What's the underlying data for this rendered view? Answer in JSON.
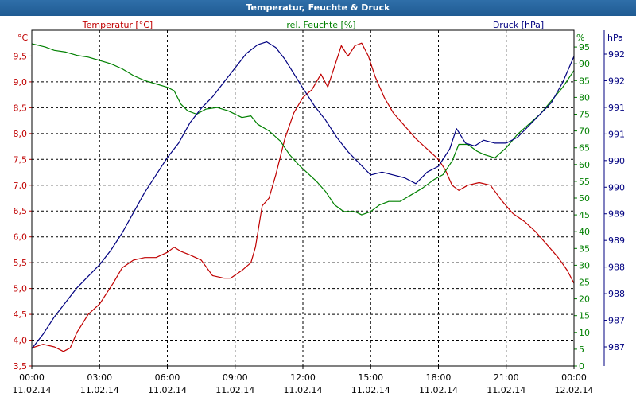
{
  "window": {
    "title": "Temperatur, Feuchte & Druck"
  },
  "colors": {
    "temperature": "#c00000",
    "humidity": "#008000",
    "pressure": "#000080",
    "frame": "#000000",
    "grid": "#000000",
    "titlebar": "#2866a0"
  },
  "chart_data": {
    "type": "line",
    "title": "Temperatur, Feuchte & Druck",
    "grid": true,
    "x": {
      "ticks": [
        [
          "00:00",
          "11.02.14"
        ],
        [
          "03:00",
          "11.02.14"
        ],
        [
          "06:00",
          "11.02.14"
        ],
        [
          "09:00",
          "11.02.14"
        ],
        [
          "12:00",
          "11.02.14"
        ],
        [
          "15:00",
          "11.02.14"
        ],
        [
          "18:00",
          "11.02.14"
        ],
        [
          "21:00",
          "11.02.14"
        ],
        [
          "00:00",
          "12.02.14"
        ]
      ],
      "range_hours": [
        0,
        24
      ]
    },
    "axes": {
      "temperature": {
        "label": "Temperatur [°C]",
        "unit": "°C",
        "range": [
          3.5,
          10.0
        ],
        "tick_labels": [
          "3,5",
          "4,0",
          "4,5",
          "5,0",
          "5,5",
          "6,0",
          "6,5",
          "7,0",
          "7,5",
          "8,0",
          "8,5",
          "9,0",
          "9,5"
        ]
      },
      "humidity": {
        "label": "rel. Feuchte [%]",
        "unit": "%",
        "range": [
          0,
          100
        ],
        "tick_labels": [
          "0",
          "5",
          "10",
          "15",
          "20",
          "25",
          "30",
          "35",
          "40",
          "45",
          "50",
          "55",
          "60",
          "65",
          "70",
          "75",
          "80",
          "85",
          "90",
          "95"
        ]
      },
      "pressure": {
        "label": "Druck [hPa]",
        "unit": "hPa",
        "range": [
          986.6,
          992.4
        ],
        "tick_labels": [
          "987",
          "987",
          "988",
          "988",
          "989",
          "989",
          "990",
          "990",
          "991",
          "991",
          "992",
          "992"
        ]
      }
    },
    "series": [
      {
        "name": "Temperatur [°C]",
        "axis": "temperature",
        "color": "#c00000",
        "points": [
          [
            0,
            3.85
          ],
          [
            0.5,
            3.92
          ],
          [
            1,
            3.87
          ],
          [
            1.4,
            3.78
          ],
          [
            1.7,
            3.85
          ],
          [
            2,
            4.15
          ],
          [
            2.5,
            4.5
          ],
          [
            3,
            4.7
          ],
          [
            3.3,
            4.9
          ],
          [
            3.6,
            5.1
          ],
          [
            4,
            5.4
          ],
          [
            4.5,
            5.55
          ],
          [
            5,
            5.6
          ],
          [
            5.5,
            5.6
          ],
          [
            6,
            5.7
          ],
          [
            6.3,
            5.8
          ],
          [
            6.6,
            5.72
          ],
          [
            7,
            5.65
          ],
          [
            7.5,
            5.55
          ],
          [
            8,
            5.25
          ],
          [
            8.5,
            5.2
          ],
          [
            8.8,
            5.2
          ],
          [
            9.3,
            5.35
          ],
          [
            9.7,
            5.5
          ],
          [
            9.9,
            5.8
          ],
          [
            10.2,
            6.6
          ],
          [
            10.5,
            6.75
          ],
          [
            10.8,
            7.2
          ],
          [
            11.2,
            7.9
          ],
          [
            11.6,
            8.4
          ],
          [
            12,
            8.7
          ],
          [
            12.4,
            8.85
          ],
          [
            12.8,
            9.15
          ],
          [
            13.1,
            8.9
          ],
          [
            13.4,
            9.3
          ],
          [
            13.7,
            9.7
          ],
          [
            14,
            9.5
          ],
          [
            14.3,
            9.7
          ],
          [
            14.6,
            9.75
          ],
          [
            14.9,
            9.5
          ],
          [
            15.2,
            9.1
          ],
          [
            15.6,
            8.7
          ],
          [
            16,
            8.4
          ],
          [
            16.5,
            8.15
          ],
          [
            17,
            7.9
          ],
          [
            17.5,
            7.7
          ],
          [
            18,
            7.5
          ],
          [
            18.3,
            7.3
          ],
          [
            18.6,
            7.0
          ],
          [
            18.9,
            6.9
          ],
          [
            19.3,
            7.0
          ],
          [
            19.8,
            7.05
          ],
          [
            20.3,
            7.0
          ],
          [
            20.8,
            6.7
          ],
          [
            21.3,
            6.45
          ],
          [
            21.8,
            6.3
          ],
          [
            22.3,
            6.1
          ],
          [
            22.8,
            5.85
          ],
          [
            23.3,
            5.6
          ],
          [
            23.7,
            5.35
          ],
          [
            24,
            5.1
          ]
        ]
      },
      {
        "name": "rel. Feuchte [%]",
        "axis": "humidity",
        "color": "#008000",
        "points": [
          [
            0,
            96
          ],
          [
            0.6,
            95
          ],
          [
            1,
            94
          ],
          [
            1.5,
            93.5
          ],
          [
            2,
            92.5
          ],
          [
            2.5,
            92
          ],
          [
            3,
            91
          ],
          [
            3.5,
            90
          ],
          [
            4,
            88.5
          ],
          [
            4.5,
            86.5
          ],
          [
            5,
            85
          ],
          [
            5.5,
            84
          ],
          [
            6,
            83
          ],
          [
            6.3,
            82
          ],
          [
            6.6,
            78
          ],
          [
            6.9,
            76
          ],
          [
            7.3,
            75
          ],
          [
            7.7,
            76.5
          ],
          [
            8.2,
            77
          ],
          [
            8.7,
            76
          ],
          [
            9.3,
            74
          ],
          [
            9.7,
            74.5
          ],
          [
            10,
            72
          ],
          [
            10.5,
            70
          ],
          [
            11,
            67
          ],
          [
            11.4,
            63
          ],
          [
            11.8,
            60
          ],
          [
            12.2,
            57.5
          ],
          [
            12.6,
            55
          ],
          [
            13,
            52
          ],
          [
            13.4,
            48
          ],
          [
            13.8,
            46
          ],
          [
            14.3,
            46
          ],
          [
            14.6,
            45
          ],
          [
            15,
            46
          ],
          [
            15.4,
            48
          ],
          [
            15.8,
            49
          ],
          [
            16.3,
            49
          ],
          [
            16.8,
            51
          ],
          [
            17.3,
            53
          ],
          [
            17.8,
            55.5
          ],
          [
            18.2,
            57
          ],
          [
            18.6,
            61
          ],
          [
            18.9,
            66
          ],
          [
            19.3,
            66
          ],
          [
            19.7,
            64
          ],
          [
            20,
            63
          ],
          [
            20.5,
            62
          ],
          [
            21,
            65
          ],
          [
            21.5,
            69
          ],
          [
            22,
            72
          ],
          [
            22.5,
            75
          ],
          [
            23,
            79
          ],
          [
            23.5,
            83
          ],
          [
            24,
            88
          ]
        ]
      },
      {
        "name": "Druck [hPa]",
        "axis": "pressure",
        "color": "#000080",
        "points": [
          [
            0,
            986.9
          ],
          [
            0.5,
            987.15
          ],
          [
            1,
            987.45
          ],
          [
            1.5,
            987.7
          ],
          [
            2,
            987.95
          ],
          [
            2.5,
            988.15
          ],
          [
            3,
            988.35
          ],
          [
            3.5,
            988.6
          ],
          [
            4,
            988.9
          ],
          [
            4.5,
            989.25
          ],
          [
            5,
            989.6
          ],
          [
            5.5,
            989.9
          ],
          [
            6,
            990.2
          ],
          [
            6.5,
            990.45
          ],
          [
            7,
            990.8
          ],
          [
            7.5,
            991.05
          ],
          [
            8,
            991.25
          ],
          [
            8.5,
            991.5
          ],
          [
            9,
            991.75
          ],
          [
            9.5,
            992.0
          ],
          [
            10,
            992.15
          ],
          [
            10.4,
            992.2
          ],
          [
            10.8,
            992.1
          ],
          [
            11.2,
            991.9
          ],
          [
            11.6,
            991.65
          ],
          [
            12,
            991.4
          ],
          [
            12.5,
            991.1
          ],
          [
            13,
            990.85
          ],
          [
            13.5,
            990.55
          ],
          [
            14,
            990.3
          ],
          [
            14.5,
            990.1
          ],
          [
            15,
            989.9
          ],
          [
            15.5,
            989.95
          ],
          [
            16,
            989.9
          ],
          [
            16.5,
            989.85
          ],
          [
            17,
            989.75
          ],
          [
            17.5,
            989.95
          ],
          [
            18,
            990.05
          ],
          [
            18.5,
            990.35
          ],
          [
            18.8,
            990.7
          ],
          [
            19.2,
            990.45
          ],
          [
            19.6,
            990.4
          ],
          [
            20,
            990.5
          ],
          [
            20.5,
            990.45
          ],
          [
            21,
            990.45
          ],
          [
            21.5,
            990.55
          ],
          [
            22,
            990.75
          ],
          [
            22.5,
            990.95
          ],
          [
            23,
            991.15
          ],
          [
            23.5,
            991.5
          ],
          [
            24,
            991.95
          ]
        ]
      }
    ]
  }
}
